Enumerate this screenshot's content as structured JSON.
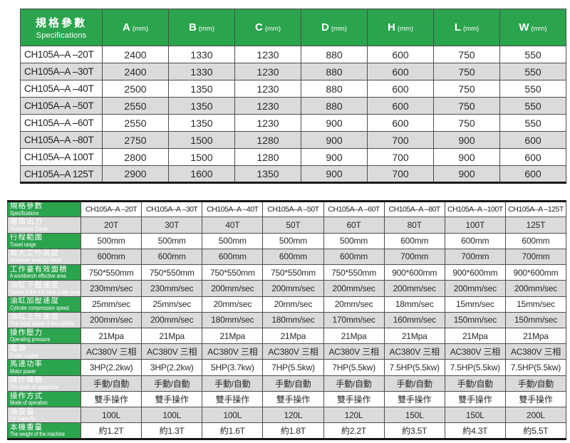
{
  "colors": {
    "header_green": "#2ba44e",
    "row_alt_gray": "#dbdbdb",
    "border": "#4d4d4d",
    "text": "#2a2a2a"
  },
  "top_table": {
    "corner": {
      "cn": "規格參數",
      "en": "Specifications"
    },
    "columns": [
      {
        "letter": "A",
        "unit": "(mm)"
      },
      {
        "letter": "B",
        "unit": "(mm)"
      },
      {
        "letter": "C",
        "unit": "(mm)"
      },
      {
        "letter": "D",
        "unit": "(mm)"
      },
      {
        "letter": "H",
        "unit": "(mm)"
      },
      {
        "letter": "L",
        "unit": "(mm)"
      },
      {
        "letter": "W",
        "unit": "(mm)"
      }
    ],
    "rows": [
      {
        "model": "CH105A–A –20T",
        "values": [
          "2400",
          "1330",
          "1230",
          "880",
          "600",
          "750",
          "550"
        ]
      },
      {
        "model": "CH105A–A –30T",
        "values": [
          "2400",
          "1330",
          "1230",
          "880",
          "600",
          "750",
          "550"
        ]
      },
      {
        "model": "CH105A–A –40T",
        "values": [
          "2500",
          "1350",
          "1230",
          "880",
          "600",
          "750",
          "550"
        ]
      },
      {
        "model": "CH105A–A –50T",
        "values": [
          "2550",
          "1350",
          "1230",
          "880",
          "600",
          "750",
          "550"
        ]
      },
      {
        "model": "CH105A–A –60T",
        "values": [
          "2550",
          "1350",
          "1230",
          "900",
          "600",
          "750",
          "550"
        ]
      },
      {
        "model": "CH105A–A –80T",
        "values": [
          "2750",
          "1500",
          "1280",
          "900",
          "700",
          "900",
          "600"
        ]
      },
      {
        "model": "CH105A–A 100T",
        "values": [
          "2800",
          "1500",
          "1280",
          "900",
          "700",
          "900",
          "600"
        ]
      },
      {
        "model": "CH105A–A 125T",
        "values": [
          "2900",
          "1600",
          "1350",
          "900",
          "700",
          "900",
          "600"
        ]
      }
    ]
  },
  "bottom_table": {
    "corner": {
      "cn": "規格參數",
      "en": "Specifications"
    },
    "models": [
      "CH105A–A –20T",
      "CH105A–A –30T",
      "CH105A–A –40T",
      "CH105A–A –50T",
      "CH105A–A –60T",
      "CH105A–A –80T",
      "CH105A–A –100T",
      "CH105A–A –125T"
    ],
    "rows": [
      {
        "cn": "理論出力",
        "en": "Theoretical Thrust",
        "values": [
          "20T",
          "30T",
          "40T",
          "50T",
          "60T",
          "80T",
          "100T",
          "125T"
        ]
      },
      {
        "cn": "行程範圍",
        "en": "Travel range",
        "values": [
          "500mm",
          "500mm",
          "500mm",
          "500mm",
          "500mm",
          "600mm",
          "600mm",
          "600mm"
        ]
      },
      {
        "cn": "最大工作高度",
        "en": "Maximum working height",
        "values": [
          "600mm",
          "600mm",
          "600mm",
          "600mm",
          "600mm",
          "700mm",
          "700mm",
          "700mm"
        ]
      },
      {
        "cn": "工作臺有效面積",
        "en": "A workbench effective area",
        "values": [
          "750*550mm",
          "750*550mm",
          "750*550mm",
          "750*550mm",
          "750*550mm",
          "900*600mm",
          "900*600mm",
          "900*600mm"
        ]
      },
      {
        "cn": "油缸下壓速度",
        "en": "Speed of the fuel tank under pressure",
        "values": [
          "230mm/sec",
          "230mm/sec",
          "200mm/sec",
          "200mm/sec",
          "200mm/sec",
          "200mm/sec",
          "200mm/sec",
          "200mm/sec"
        ]
      },
      {
        "cn": "油缸加壓速度",
        "en": "Cylinder compression speed",
        "values": [
          "25mm/sec",
          "25mm/sec",
          "20mm/sec",
          "20mm/sec",
          "20mm/sec",
          "18mm/sec",
          "15mm/sec",
          "15mm/sec"
        ]
      },
      {
        "cn": "油缸上升速度",
        "en": "The rising speed of the cylinder",
        "values": [
          "200mm/sec",
          "200mm/sec",
          "180mm/sec",
          "180mm/sec",
          "170mm/sec",
          "160mm/sec",
          "150mm/sec",
          "150mm/sec"
        ]
      },
      {
        "cn": "操作壓力",
        "en": "Operating pressure",
        "values": [
          "21Mpa",
          "21Mpa",
          "21Mpa",
          "21Mpa",
          "21Mpa",
          "21Mpa",
          "21Mpa",
          "21Mpa"
        ]
      },
      {
        "cn": "電源",
        "en": "Power supply",
        "values": [
          "AC380V 三相",
          "AC380V 三相",
          "AC380V 三相",
          "AC380V 三相",
          "AC380V 三相",
          "AC380V 三相",
          "AC380V 三相",
          "AC380V 三相"
        ]
      },
      {
        "cn": "馬達功率",
        "en": "Motor power",
        "values": [
          "3HP(2.2kw)",
          "3HP(2.2kw)",
          "5HP(3.7kw)",
          "7HP(5.5kw)",
          "7HP(5.5kw)",
          "7.5HP(5.5kw)",
          "7.5HP(5.5kw)",
          "7.5HP(5.5kw)"
        ]
      },
      {
        "cn": "操作種類",
        "en": "The kinds of operations",
        "values": [
          "手動/自動",
          "手動/自動",
          "手動/自動",
          "手動/自動",
          "手動/自動",
          "手動/自動",
          "手動/自動",
          "手動/自動"
        ]
      },
      {
        "cn": "操作方式",
        "en": "Mode of operation",
        "values": [
          "雙手操作",
          "雙手操作",
          "雙手操作",
          "雙手操作",
          "雙手操作",
          "雙手操作",
          "雙手操作",
          "雙手操作"
        ]
      },
      {
        "cn": "油容量",
        "en": "Oil Capacity",
        "values": [
          "100L",
          "100L",
          "100L",
          "120L",
          "120L",
          "150L",
          "150L",
          "200L"
        ]
      },
      {
        "cn": "本機重量",
        "en": "The weight of the machine",
        "values": [
          "約1.2T",
          "約1.3T",
          "約1.6T",
          "約1.8T",
          "約2.2T",
          "約3.5T",
          "約4.3T",
          "約5.5T"
        ]
      }
    ]
  }
}
